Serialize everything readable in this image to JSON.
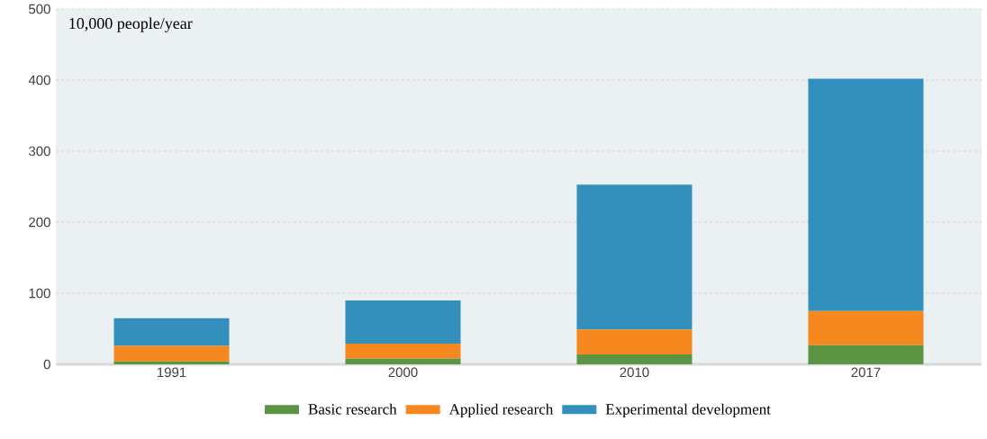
{
  "chart_data": {
    "type": "bar",
    "stacked": true,
    "ylabel": "10,000 people/year",
    "categories": [
      "1991",
      "2000",
      "2010",
      "2017"
    ],
    "series": [
      {
        "name": "Basic research",
        "color": "#5b9443",
        "values": [
          4,
          8,
          14,
          27
        ]
      },
      {
        "name": "Applied research",
        "color": "#f5891f",
        "values": [
          22,
          21,
          35,
          48
        ]
      },
      {
        "name": "Experimental development",
        "color": "#3390bd",
        "values": [
          39,
          61,
          204,
          327
        ]
      }
    ],
    "ylim": [
      0,
      500
    ],
    "yticks": [
      0,
      100,
      200,
      300,
      400,
      500
    ],
    "grid": "y",
    "legend": "bottom"
  }
}
